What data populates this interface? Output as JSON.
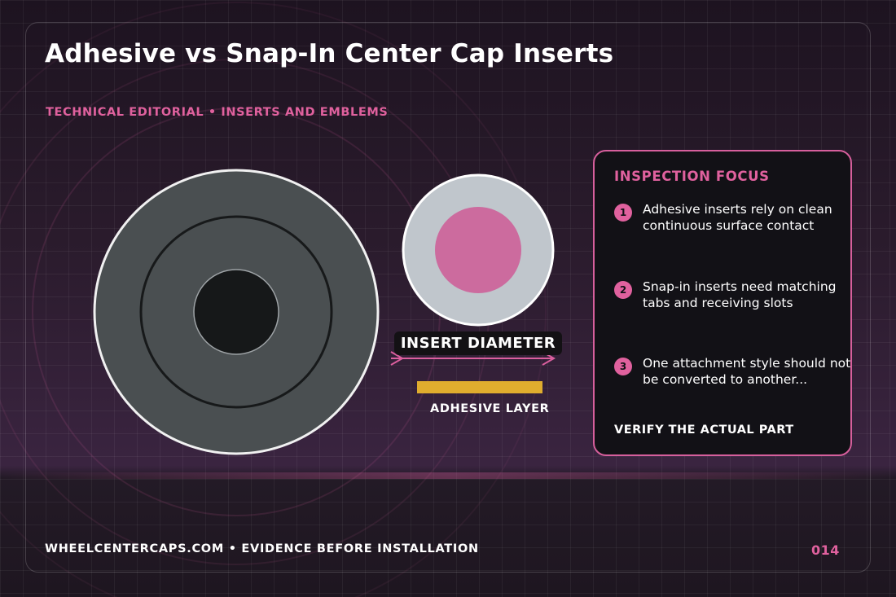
{
  "title": "Adhesive vs Snap-In Center Cap Inserts",
  "subtitle": "TECHNICAL EDITORIAL • INSERTS AND EMBLEMS",
  "diagram": {
    "diameter_label": "INSERT DIAMETER",
    "adhesive_label": "ADHESIVE LAYER"
  },
  "panel": {
    "title": "INSPECTION FOCUS",
    "items": [
      {
        "number": "1",
        "text": "Adhesive inserts rely on clean continuous surface contact"
      },
      {
        "number": "2",
        "text": "Snap-in inserts need matching tabs and receiving slots"
      },
      {
        "number": "3",
        "text": "One attachment style should not be converted to another..."
      }
    ],
    "footer": "VERIFY THE ACTUAL PART"
  },
  "footer": {
    "text": "WHEELCENTERCAPS.COM • EVIDENCE BEFORE INSTALLATION",
    "page_number": "014"
  },
  "colors": {
    "accent": "#e0619e",
    "adhesive": "#e0ad2e",
    "cap_gray": "#4a4f51",
    "insert_pink": "#cc6b9e",
    "insert_ring": "#c0c6cc"
  }
}
